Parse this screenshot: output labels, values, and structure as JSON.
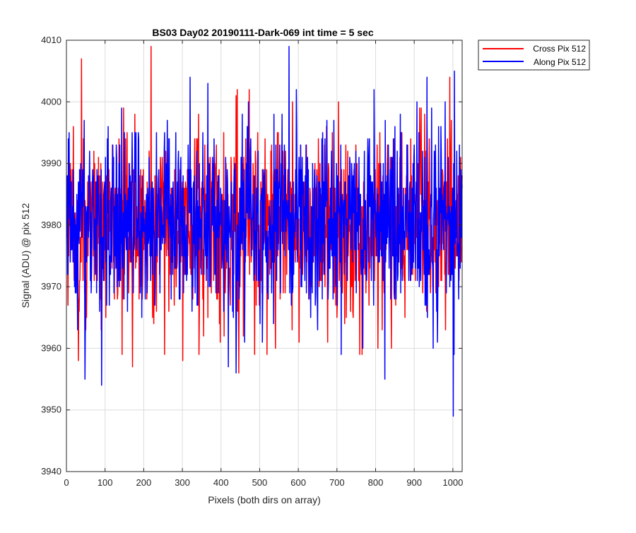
{
  "chart_data": {
    "type": "line",
    "title": "BS03 Day02 20190111-Dark-069 int time = 5 sec",
    "xlabel": "Pixels (both dirs on array)",
    "ylabel": "Signal (ADU) @ pix 512",
    "xlim": [
      0,
      1024
    ],
    "ylim": [
      3940,
      4010
    ],
    "xticks": [
      0,
      100,
      200,
      300,
      400,
      500,
      600,
      700,
      800,
      900,
      1000
    ],
    "yticks": [
      3940,
      3950,
      3960,
      3970,
      3980,
      3990,
      4000,
      4010
    ],
    "grid": true,
    "legend_position": "outside-top-right",
    "series": [
      {
        "name": "Cross Pix 512",
        "color": "#ff0000",
        "points": 1024,
        "mean": 3980,
        "min": 3957,
        "max": 4009,
        "sampled_extremes": [
          {
            "x": 30,
            "y": 3958
          },
          {
            "x": 38,
            "y": 4007
          },
          {
            "x": 170,
            "y": 3957
          },
          {
            "x": 218,
            "y": 4009
          },
          {
            "x": 253,
            "y": 3959
          },
          {
            "x": 300,
            "y": 3958
          },
          {
            "x": 445,
            "y": 3956
          },
          {
            "x": 540,
            "y": 3960
          },
          {
            "x": 675,
            "y": 3961
          },
          {
            "x": 805,
            "y": 3960
          },
          {
            "x": 980,
            "y": 3963
          }
        ]
      },
      {
        "name": "Along Pix 512",
        "color": "#0000ff",
        "points": 1024,
        "mean": 3981,
        "min": 3949,
        "max": 4009,
        "sampled_extremes": [
          {
            "x": 47,
            "y": 3955
          },
          {
            "x": 90,
            "y": 3954
          },
          {
            "x": 438,
            "y": 3956
          },
          {
            "x": 575,
            "y": 4009
          },
          {
            "x": 710,
            "y": 3959
          },
          {
            "x": 1000,
            "y": 3949
          },
          {
            "x": 1003,
            "y": 4005
          }
        ]
      }
    ]
  }
}
